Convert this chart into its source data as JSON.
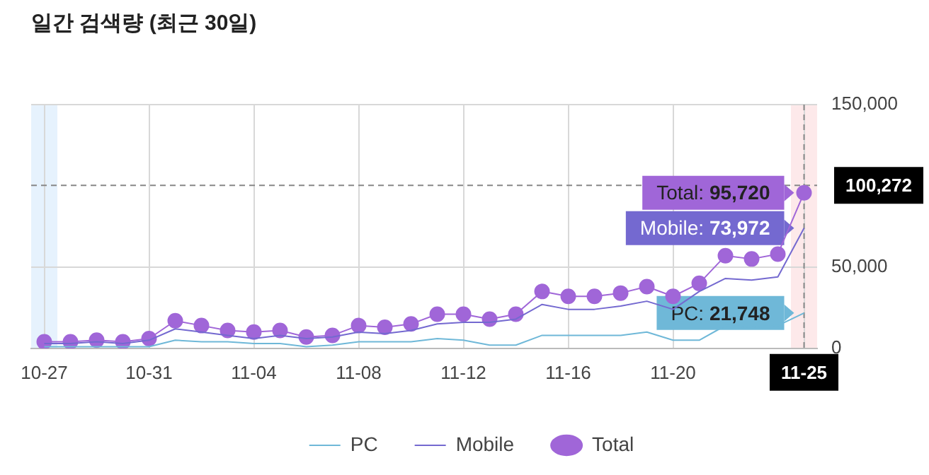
{
  "chart_data": {
    "type": "line",
    "title": "일간 검색량 (최근 30일)",
    "categories": [
      "10-27",
      null,
      null,
      null,
      "10-31",
      null,
      null,
      null,
      "11-04",
      null,
      null,
      null,
      "11-08",
      null,
      null,
      null,
      "11-12",
      null,
      null,
      null,
      "11-16",
      null,
      null,
      null,
      "11-20",
      null,
      null,
      null,
      null,
      "11-25"
    ],
    "series": [
      {
        "name": "PC",
        "color": "#6fb8d8",
        "values": [
          1000,
          1000,
          1000,
          1000,
          1000,
          5000,
          4000,
          4000,
          3000,
          3000,
          1000,
          2000,
          4000,
          4000,
          4000,
          6000,
          5000,
          2000,
          2000,
          8000,
          8000,
          8000,
          8000,
          10000,
          5000,
          5000,
          14000,
          13000,
          14000,
          21748
        ]
      },
      {
        "name": "Mobile",
        "color": "#7469d0",
        "values": [
          3000,
          3000,
          4000,
          3000,
          5000,
          12000,
          10000,
          8000,
          6000,
          8000,
          6000,
          7000,
          10000,
          9000,
          11000,
          15000,
          16000,
          16000,
          18000,
          27000,
          24000,
          24000,
          26000,
          29000,
          24000,
          35000,
          43000,
          42000,
          44000,
          73972
        ]
      },
      {
        "name": "Total",
        "color": "#a066d8",
        "marker": "circle",
        "values": [
          4000,
          4000,
          5000,
          4000,
          6000,
          17000,
          14000,
          11000,
          10000,
          11000,
          7000,
          8000,
          14000,
          13000,
          15000,
          21000,
          21000,
          18000,
          21000,
          35000,
          32000,
          32000,
          34000,
          38000,
          32000,
          40000,
          57000,
          55000,
          58000,
          95720
        ]
      }
    ],
    "ylim": [
      0,
      150000
    ],
    "yticks": [
      0,
      {
        "value": 50000,
        "label": "50,000"
      },
      {
        "value": 150000,
        "label": "150,000"
      }
    ],
    "grid": true,
    "legend": "bottom",
    "line_style": "solid",
    "ref_lines": [
      {
        "axis": "y",
        "value": 100272,
        "label": "100,272",
        "line_style": "dashed"
      },
      {
        "axis": "x",
        "value": "11-25",
        "line_style": "dashed"
      }
    ],
    "bands": [
      {
        "axis": "x",
        "from": "10-27",
        "to": "10-27",
        "color": "#e6f2fd"
      },
      {
        "axis": "x",
        "from": "11-25",
        "to": "11-25",
        "color": "#fde9ea"
      }
    ],
    "annotations": [
      {
        "text": "Total: 95,720",
        "x": "11-25",
        "y": 95720
      },
      {
        "text": "Mobile: 73,972",
        "x": "11-25",
        "y": 73972
      },
      {
        "text": "PC: 21,748",
        "x": "11-25",
        "y": 21748
      }
    ]
  }
}
